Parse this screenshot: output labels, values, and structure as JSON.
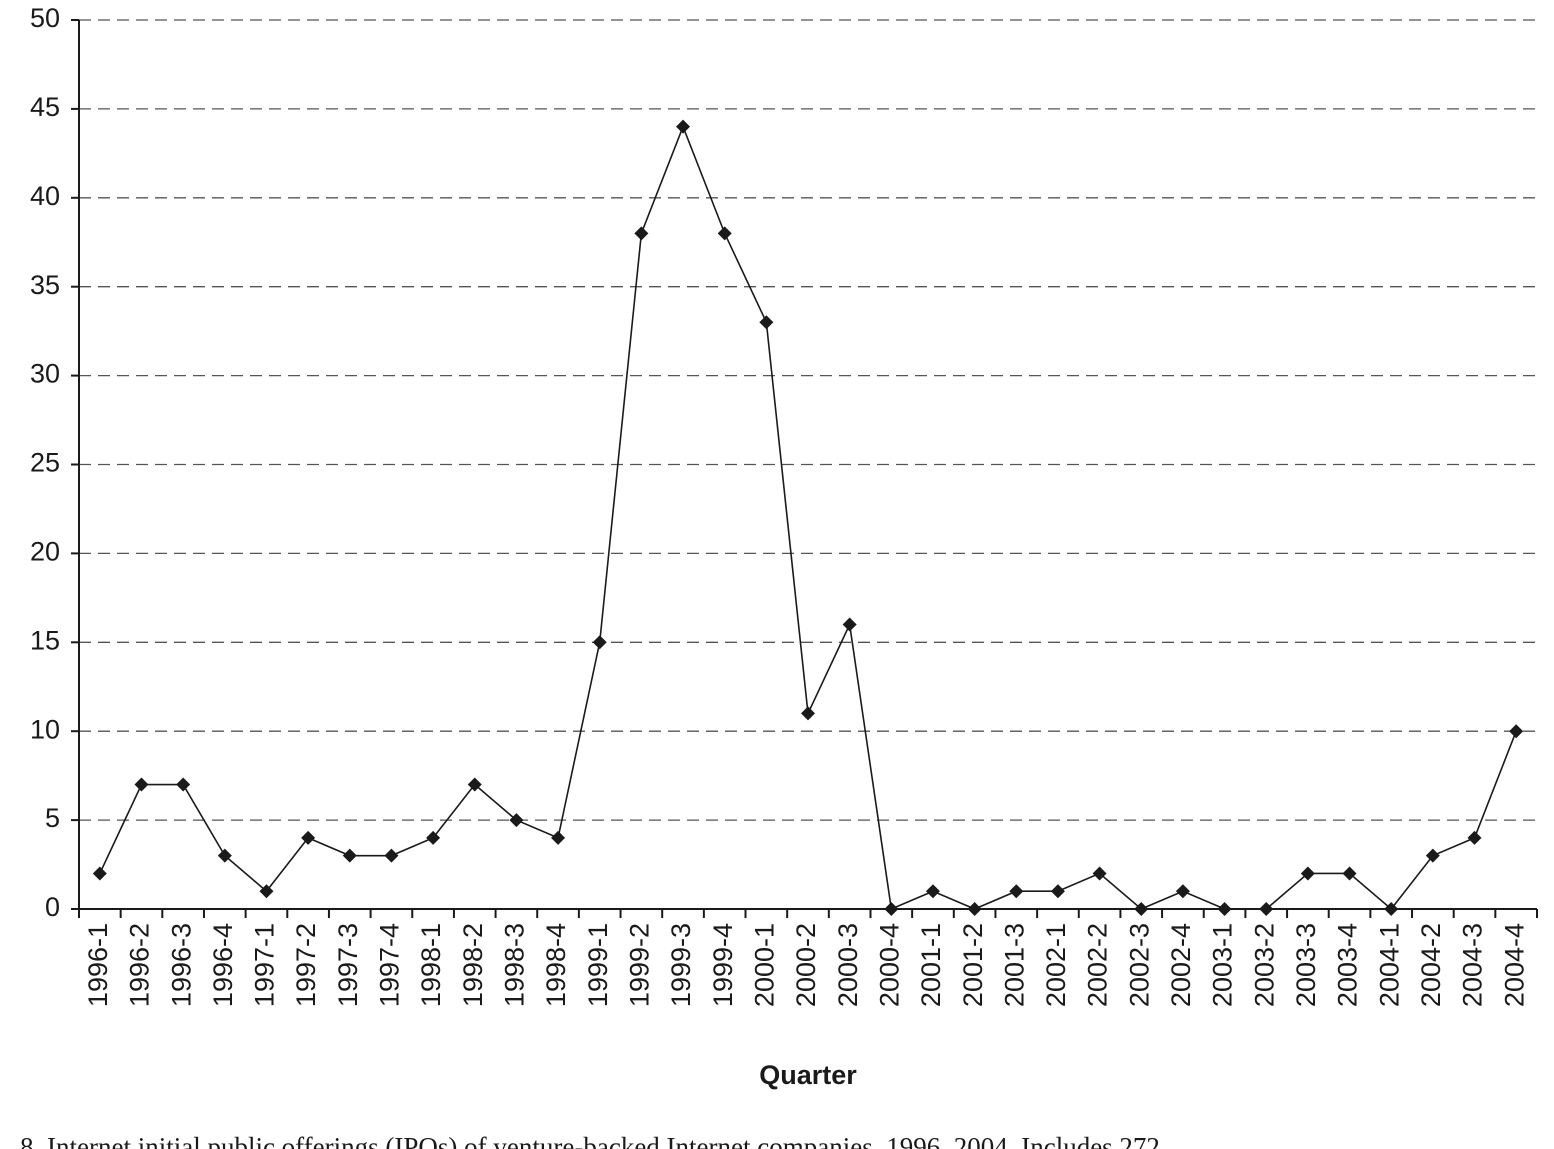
{
  "chart_data": {
    "type": "line",
    "x_label": "Quarter",
    "caption": "8. Internet initial public offerings (IPOs) of venture-backed Internet companies, 1996–2004. Includes 272",
    "categories": [
      "1996-1",
      "1996-2",
      "1996-3",
      "1996-4",
      "1997-1",
      "1997-2",
      "1997-3",
      "1997-4",
      "1998-1",
      "1998-2",
      "1998-3",
      "1998-4",
      "1999-1",
      "1999-2",
      "1999-3",
      "1999-4",
      "2000-1",
      "2000-2",
      "2000-3",
      "2000-4",
      "2001-1",
      "2001-2",
      "2001-3",
      "2002-1",
      "2002-2",
      "2002-3",
      "2002-4",
      "2003-1",
      "2003-2",
      "2003-3",
      "2003-4",
      "2004-1",
      "2004-2",
      "2004-3",
      "2004-4"
    ],
    "values": [
      2,
      7,
      7,
      3,
      1,
      4,
      3,
      3,
      4,
      7,
      5,
      4,
      15,
      38,
      44,
      38,
      33,
      11,
      16,
      0,
      1,
      0,
      1,
      1,
      2,
      0,
      1,
      0,
      0,
      2,
      2,
      0,
      3,
      4,
      10
    ],
    "color": "#1a1a1a",
    "ylim": [
      0,
      50
    ],
    "yticks": [
      0,
      5,
      10,
      15,
      20,
      25,
      30,
      35,
      40,
      45,
      50
    ],
    "grid": true
  }
}
